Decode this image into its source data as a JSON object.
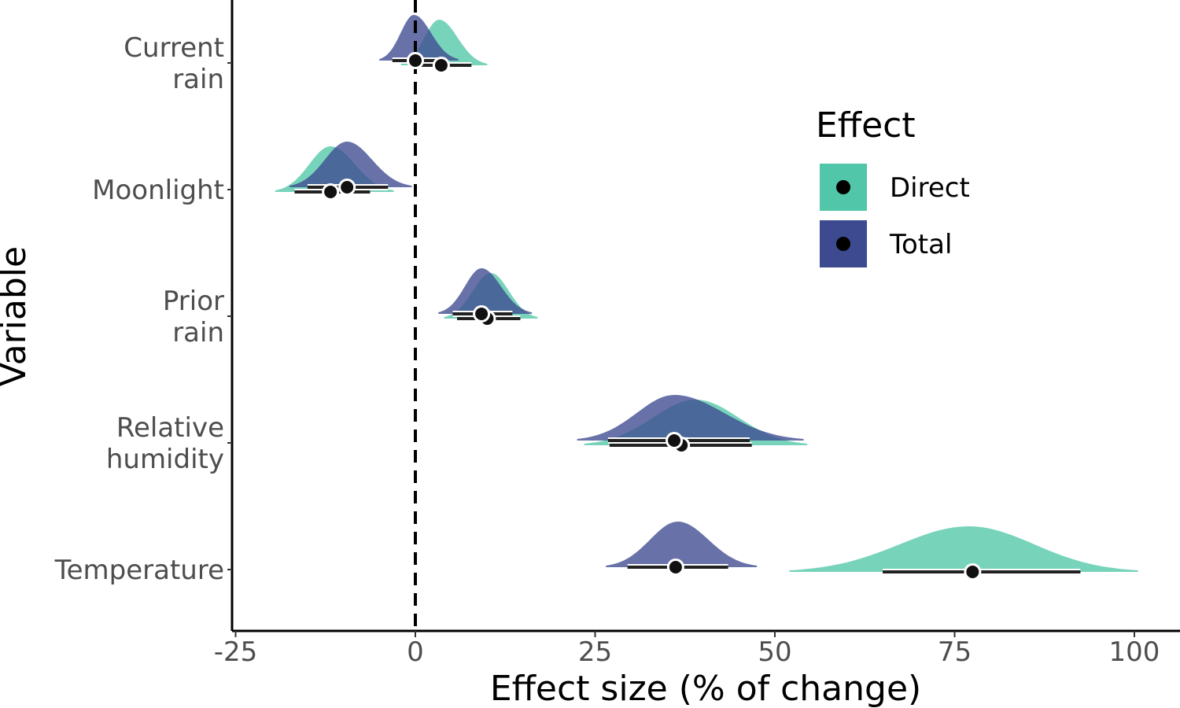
{
  "chart_data": {
    "type": "halfeye",
    "xlabel": "Effect size (% of change)",
    "ylabel": "Variable",
    "xlim": [
      -25,
      105
    ],
    "x_ticks": [
      -25,
      0,
      25,
      50,
      75,
      100
    ],
    "x_tick_labels": [
      "-25",
      "0",
      "25",
      "50",
      "75",
      "100"
    ],
    "reference_line_x": 0,
    "categories": [
      {
        "key": "current_rain",
        "lines": [
          "Current",
          "rain"
        ]
      },
      {
        "key": "moonlight",
        "lines": [
          "Moonlight"
        ]
      },
      {
        "key": "prior_rain",
        "lines": [
          "Prior",
          "rain"
        ]
      },
      {
        "key": "relative_humidity",
        "lines": [
          "Relative",
          "humidity"
        ]
      },
      {
        "key": "temperature",
        "lines": [
          "Temperature"
        ]
      }
    ],
    "legend": {
      "title": "Effect",
      "placement": "right-top"
    },
    "series": [
      {
        "name": "Direct",
        "color": "#52C6A8",
        "estimates": [
          {
            "category": "current_rain",
            "point": 3.6,
            "interval": [
              -0.8,
              7.8
            ],
            "density_range": [
              -2,
              10
            ],
            "density_mode": 3.3
          },
          {
            "category": "moonlight",
            "point": -11.8,
            "interval": [
              -16.8,
              -6.3
            ],
            "density_range": [
              -19.5,
              -3
            ],
            "density_mode": -11.8
          },
          {
            "category": "prior_rain",
            "point": 10.0,
            "interval": [
              5.8,
              14.6
            ],
            "density_range": [
              4,
              17
            ],
            "density_mode": 10.5
          },
          {
            "category": "relative_humidity",
            "point": 37.0,
            "interval": [
              27,
              46.8
            ],
            "density_range": [
              23.5,
              54.5
            ],
            "density_mode": 39
          },
          {
            "category": "temperature",
            "point": 77.5,
            "interval": [
              65,
              92.5
            ],
            "density_range": [
              52,
              100.5
            ],
            "density_mode": 77
          }
        ]
      },
      {
        "name": "Total",
        "color": "#3E4A8F",
        "estimates": [
          {
            "category": "current_rain",
            "point": 0.0,
            "interval": [
              -3.2,
              4.2
            ],
            "density_range": [
              -5,
              6
            ],
            "density_mode": -0.2
          },
          {
            "category": "moonlight",
            "point": -9.5,
            "interval": [
              -15,
              -3.8
            ],
            "density_range": [
              -17.5,
              -0.5
            ],
            "density_mode": -9.5
          },
          {
            "category": "prior_rain",
            "point": 9.2,
            "interval": [
              5.2,
              13.5
            ],
            "density_range": [
              3.2,
              16.2
            ],
            "density_mode": 9.2
          },
          {
            "category": "relative_humidity",
            "point": 36.0,
            "interval": [
              26.8,
              46.5
            ],
            "density_range": [
              22.5,
              54
            ],
            "density_mode": 36
          },
          {
            "category": "temperature",
            "point": 36.2,
            "interval": [
              29.5,
              43.5
            ],
            "density_range": [
              26.5,
              47.5
            ],
            "density_mode": 36.5
          }
        ]
      }
    ]
  }
}
